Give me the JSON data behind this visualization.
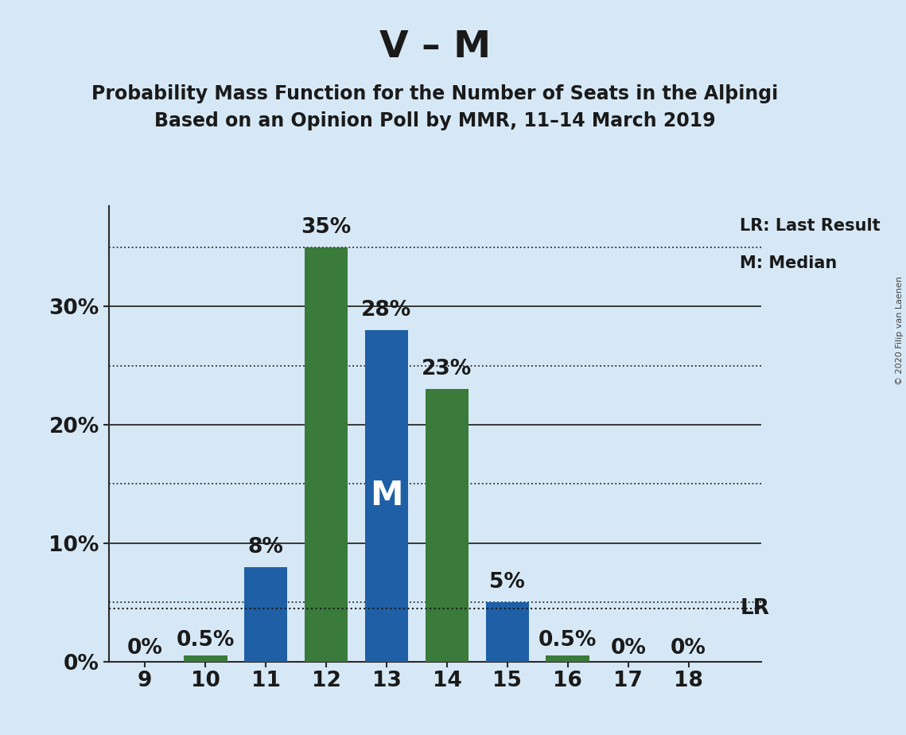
{
  "title": "V – M",
  "subtitle1": "Probability Mass Function for the Number of Seats in the Alþingi",
  "subtitle2": "Based on an Opinion Poll by MMR, 11–14 March 2019",
  "copyright": "© 2020 Filip van Laenen",
  "seats": [
    9,
    10,
    11,
    12,
    13,
    14,
    15,
    16,
    17,
    18
  ],
  "green_values": [
    0.0,
    0.5,
    0.0,
    35.0,
    0.0,
    23.0,
    0.0,
    0.5,
    0.0,
    0.0
  ],
  "blue_values": [
    0.0,
    0.0,
    8.0,
    0.0,
    28.0,
    0.0,
    5.0,
    0.0,
    0.0,
    0.0
  ],
  "green_labels": [
    "0%",
    "0.5%",
    "",
    "35%",
    "",
    "23%",
    "",
    "0.5%",
    "0%",
    "0%"
  ],
  "blue_labels": [
    "",
    "",
    "8%",
    "",
    "28%",
    "",
    "5%",
    "",
    "",
    ""
  ],
  "median_seat": 13,
  "lr_value": 4.5,
  "green_color": "#3a7a3a",
  "blue_color": "#1f5fa6",
  "background_color": "#d6e8f5",
  "text_color": "#1a1a1a",
  "title_fontsize": 34,
  "subtitle_fontsize": 17,
  "label_fontsize": 19,
  "tick_fontsize": 19,
  "minor_tick_fontsize": 19,
  "yticks_major": [
    0,
    10,
    20,
    30
  ],
  "ytick_major_labels": [
    "0%",
    "10%",
    "20%",
    "30%"
  ],
  "yticks_minor": [
    5,
    15,
    25,
    35
  ],
  "ymax": 38.5,
  "legend_lr": "LR: Last Result",
  "legend_m": "M: Median",
  "bar_width": 0.72
}
